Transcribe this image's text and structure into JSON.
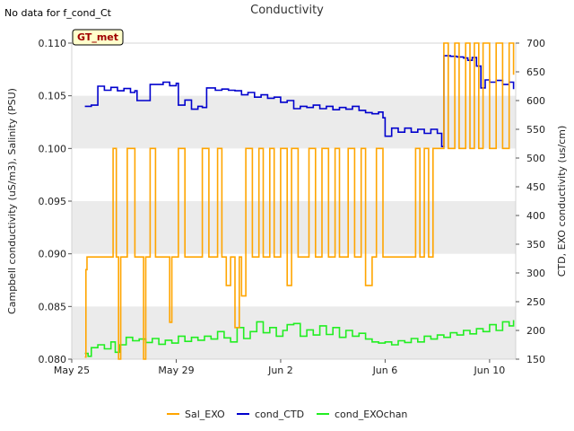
{
  "note": "No data for f_cond_Ct",
  "badge": "GT_met",
  "colors": {
    "Sal_EXO": "#FFA500",
    "cond_CTD": "#0000CD",
    "cond_EXOchan": "#22EE22",
    "band": "#EBEBEB"
  },
  "chart_data": {
    "type": "line",
    "title": "Conductivity",
    "ylabel": "Campbell conductivity (uS/m3), Salinity (PSU)",
    "y2label": "CTD, EXO conductivity (us/cm)",
    "xlim": [
      "2023-05-25",
      "2023-06-11"
    ],
    "ylim": [
      0.08,
      0.11
    ],
    "y2lim": [
      150,
      700
    ],
    "x_ticks": [
      {
        "date": "2023-05-25",
        "label": "May 25"
      },
      {
        "date": "2023-05-29",
        "label": "May 29"
      },
      {
        "date": "2023-06-02",
        "label": "Jun 2"
      },
      {
        "date": "2023-06-06",
        "label": "Jun 6"
      },
      {
        "date": "2023-06-10",
        "label": "Jun 10"
      }
    ],
    "y_ticks": [
      "0.080",
      "0.085",
      "0.090",
      "0.095",
      "0.100",
      "0.105",
      "0.110"
    ],
    "y2_ticks": [
      "150",
      "200",
      "250",
      "300",
      "350",
      "400",
      "450",
      "500",
      "550",
      "600",
      "650",
      "700"
    ],
    "legend_position": "bottom",
    "series": [
      {
        "name": "Sal_EXO",
        "axis": "left",
        "points": [
          [
            "2023-05-25T12:00",
            0.0802
          ],
          [
            "2023-05-25T13:00",
            0.0885
          ],
          [
            "2023-05-25T14:00",
            0.0897
          ],
          [
            "2023-05-26T12:00",
            0.0897
          ],
          [
            "2023-05-26T14:00",
            0.1
          ],
          [
            "2023-05-26T17:00",
            0.0897
          ],
          [
            "2023-05-26T19:00",
            0.08
          ],
          [
            "2023-05-26T21:00",
            0.0897
          ],
          [
            "2023-05-27T00:00",
            0.0897
          ],
          [
            "2023-05-27T03:00",
            0.1
          ],
          [
            "2023-05-27T08:00",
            0.1
          ],
          [
            "2023-05-27T10:00",
            0.0897
          ],
          [
            "2023-05-27T16:00",
            0.0897
          ],
          [
            "2023-05-27T18:00",
            0.08
          ],
          [
            "2023-05-27T20:00",
            0.0897
          ],
          [
            "2023-05-28T00:00",
            0.1
          ],
          [
            "2023-05-28T05:00",
            0.0897
          ],
          [
            "2023-05-28T16:00",
            0.0897
          ],
          [
            "2023-05-28T18:00",
            0.0835
          ],
          [
            "2023-05-28T20:00",
            0.0897
          ],
          [
            "2023-05-29T02:00",
            0.1
          ],
          [
            "2023-05-29T08:00",
            0.0897
          ],
          [
            "2023-05-29T10:00",
            0.0897
          ],
          [
            "2023-05-29T20:00",
            0.0897
          ],
          [
            "2023-05-30T00:00",
            0.1
          ],
          [
            "2023-05-30T06:00",
            0.0897
          ],
          [
            "2023-05-30T10:00",
            0.0897
          ],
          [
            "2023-05-30T14:00",
            0.1
          ],
          [
            "2023-05-30T18:00",
            0.0897
          ],
          [
            "2023-05-30T22:00",
            0.087
          ],
          [
            "2023-05-31T02:00",
            0.0897
          ],
          [
            "2023-05-31T06:00",
            0.083
          ],
          [
            "2023-05-31T10:00",
            0.0897
          ],
          [
            "2023-05-31T12:00",
            0.086
          ],
          [
            "2023-05-31T16:00",
            0.1
          ],
          [
            "2023-05-31T22:00",
            0.0897
          ],
          [
            "2023-06-01T04:00",
            0.1
          ],
          [
            "2023-06-01T08:00",
            0.0897
          ],
          [
            "2023-06-01T14:00",
            0.1
          ],
          [
            "2023-06-01T18:00",
            0.0897
          ],
          [
            "2023-06-02T00:00",
            0.1
          ],
          [
            "2023-06-02T06:00",
            0.087
          ],
          [
            "2023-06-02T10:00",
            0.1
          ],
          [
            "2023-06-02T16:00",
            0.0897
          ],
          [
            "2023-06-02T20:00",
            0.0897
          ],
          [
            "2023-06-03T02:00",
            0.1
          ],
          [
            "2023-06-03T08:00",
            0.0897
          ],
          [
            "2023-06-03T14:00",
            0.1
          ],
          [
            "2023-06-03T20:00",
            0.0897
          ],
          [
            "2023-06-04T02:00",
            0.1
          ],
          [
            "2023-06-04T06:00",
            0.0897
          ],
          [
            "2023-06-04T10:00",
            0.0897
          ],
          [
            "2023-06-04T14:00",
            0.1
          ],
          [
            "2023-06-04T20:00",
            0.0897
          ],
          [
            "2023-06-05T02:00",
            0.1
          ],
          [
            "2023-06-05T06:00",
            0.087
          ],
          [
            "2023-06-05T12:00",
            0.0897
          ],
          [
            "2023-06-05T16:00",
            0.1
          ],
          [
            "2023-06-05T22:00",
            0.0897
          ],
          [
            "2023-06-06T04:00",
            0.0897
          ],
          [
            "2023-06-06T14:00",
            0.0897
          ],
          [
            "2023-06-06T20:00",
            0.0897
          ],
          [
            "2023-06-07T00:00",
            0.0897
          ],
          [
            "2023-06-07T04:00",
            0.1
          ],
          [
            "2023-06-07T08:00",
            0.0897
          ],
          [
            "2023-06-07T12:00",
            0.1
          ],
          [
            "2023-06-07T16:00",
            0.0897
          ],
          [
            "2023-06-07T20:00",
            0.1
          ],
          [
            "2023-06-08T00:00",
            0.1
          ],
          [
            "2023-06-08T06:00",
            0.11
          ],
          [
            "2023-06-08T10:00",
            0.1
          ],
          [
            "2023-06-08T16:00",
            0.11
          ],
          [
            "2023-06-08T20:00",
            0.1
          ],
          [
            "2023-06-09T02:00",
            0.11
          ],
          [
            "2023-06-09T06:00",
            0.1
          ],
          [
            "2023-06-09T10:00",
            0.11
          ],
          [
            "2023-06-09T14:00",
            0.1
          ],
          [
            "2023-06-09T18:00",
            0.11
          ],
          [
            "2023-06-10T00:00",
            0.1
          ],
          [
            "2023-06-10T06:00",
            0.11
          ],
          [
            "2023-06-10T12:00",
            0.1
          ],
          [
            "2023-06-10T18:00",
            0.11
          ],
          [
            "2023-06-10T22:00",
            0.107
          ]
        ]
      },
      {
        "name": "cond_CTD",
        "axis": "right",
        "points": [
          [
            "2023-05-25T12:00",
            590
          ],
          [
            "2023-05-25T18:00",
            592
          ],
          [
            "2023-05-26T00:00",
            625
          ],
          [
            "2023-05-26T06:00",
            618
          ],
          [
            "2023-05-26T12:00",
            623
          ],
          [
            "2023-05-26T18:00",
            617
          ],
          [
            "2023-05-27T00:00",
            621
          ],
          [
            "2023-05-27T06:00",
            614
          ],
          [
            "2023-05-27T10:00",
            617
          ],
          [
            "2023-05-27T12:00",
            600
          ],
          [
            "2023-05-27T18:00",
            600
          ],
          [
            "2023-05-28T00:00",
            628
          ],
          [
            "2023-05-28T06:00",
            628
          ],
          [
            "2023-05-28T12:00",
            632
          ],
          [
            "2023-05-28T18:00",
            626
          ],
          [
            "2023-05-29T00:00",
            630
          ],
          [
            "2023-05-29T02:00",
            592
          ],
          [
            "2023-05-29T08:00",
            601
          ],
          [
            "2023-05-29T14:00",
            585
          ],
          [
            "2023-05-29T20:00",
            590
          ],
          [
            "2023-05-30T00:00",
            588
          ],
          [
            "2023-05-30T04:00",
            622
          ],
          [
            "2023-05-30T12:00",
            618
          ],
          [
            "2023-05-30T18:00",
            620
          ],
          [
            "2023-05-31T00:00",
            618
          ],
          [
            "2023-05-31T06:00",
            617
          ],
          [
            "2023-05-31T12:00",
            610
          ],
          [
            "2023-05-31T18:00",
            614
          ],
          [
            "2023-06-01T00:00",
            606
          ],
          [
            "2023-06-01T06:00",
            610
          ],
          [
            "2023-06-01T12:00",
            604
          ],
          [
            "2023-06-01T18:00",
            606
          ],
          [
            "2023-06-02T00:00",
            597
          ],
          [
            "2023-06-02T06:00",
            600
          ],
          [
            "2023-06-02T12:00",
            586
          ],
          [
            "2023-06-02T18:00",
            590
          ],
          [
            "2023-06-03T00:00",
            588
          ],
          [
            "2023-06-03T06:00",
            592
          ],
          [
            "2023-06-03T12:00",
            586
          ],
          [
            "2023-06-03T18:00",
            590
          ],
          [
            "2023-06-04T00:00",
            584
          ],
          [
            "2023-06-04T06:00",
            588
          ],
          [
            "2023-06-04T12:00",
            585
          ],
          [
            "2023-06-04T18:00",
            590
          ],
          [
            "2023-06-05T00:00",
            583
          ],
          [
            "2023-06-05T06:00",
            579
          ],
          [
            "2023-06-05T12:00",
            577
          ],
          [
            "2023-06-05T18:00",
            580
          ],
          [
            "2023-06-05T22:00",
            570
          ],
          [
            "2023-06-06T00:00",
            538
          ],
          [
            "2023-06-06T06:00",
            552
          ],
          [
            "2023-06-06T12:00",
            545
          ],
          [
            "2023-06-06T18:00",
            552
          ],
          [
            "2023-06-07T00:00",
            545
          ],
          [
            "2023-06-07T06:00",
            550
          ],
          [
            "2023-06-07T12:00",
            543
          ],
          [
            "2023-06-07T18:00",
            550
          ],
          [
            "2023-06-08T00:00",
            543
          ],
          [
            "2023-06-08T04:00",
            520
          ],
          [
            "2023-06-08T06:00",
            678
          ],
          [
            "2023-06-08T12:00",
            677
          ],
          [
            "2023-06-08T18:00",
            676
          ],
          [
            "2023-06-09T00:00",
            674
          ],
          [
            "2023-06-09T04:00",
            670
          ],
          [
            "2023-06-09T08:00",
            675
          ],
          [
            "2023-06-09T12:00",
            660
          ],
          [
            "2023-06-09T16:00",
            622
          ],
          [
            "2023-06-09T20:00",
            636
          ],
          [
            "2023-06-10T00:00",
            632
          ],
          [
            "2023-06-10T06:00",
            635
          ],
          [
            "2023-06-10T12:00",
            628
          ],
          [
            "2023-06-10T18:00",
            632
          ],
          [
            "2023-06-10T22:00",
            620
          ]
        ]
      },
      {
        "name": "cond_EXOchan",
        "axis": "right",
        "points": [
          [
            "2023-05-25T12:00",
            160
          ],
          [
            "2023-05-25T15:00",
            155
          ],
          [
            "2023-05-25T18:00",
            170
          ],
          [
            "2023-05-26T00:00",
            175
          ],
          [
            "2023-05-26T06:00",
            168
          ],
          [
            "2023-05-26T12:00",
            180
          ],
          [
            "2023-05-26T16:00",
            162
          ],
          [
            "2023-05-26T20:00",
            175
          ],
          [
            "2023-05-27T02:00",
            188
          ],
          [
            "2023-05-27T08:00",
            182
          ],
          [
            "2023-05-27T14:00",
            185
          ],
          [
            "2023-05-27T20:00",
            179
          ],
          [
            "2023-05-28T02:00",
            186
          ],
          [
            "2023-05-28T08:00",
            176
          ],
          [
            "2023-05-28T14:00",
            183
          ],
          [
            "2023-05-28T20:00",
            178
          ],
          [
            "2023-05-29T02:00",
            190
          ],
          [
            "2023-05-29T08:00",
            181
          ],
          [
            "2023-05-29T14:00",
            188
          ],
          [
            "2023-05-29T20:00",
            183
          ],
          [
            "2023-05-30T02:00",
            190
          ],
          [
            "2023-05-30T08:00",
            185
          ],
          [
            "2023-05-30T14:00",
            198
          ],
          [
            "2023-05-30T20:00",
            187
          ],
          [
            "2023-05-31T02:00",
            180
          ],
          [
            "2023-05-31T08:00",
            205
          ],
          [
            "2023-05-31T14:00",
            186
          ],
          [
            "2023-05-31T20:00",
            198
          ],
          [
            "2023-06-01T02:00",
            215
          ],
          [
            "2023-06-01T08:00",
            196
          ],
          [
            "2023-06-01T14:00",
            205
          ],
          [
            "2023-06-01T20:00",
            190
          ],
          [
            "2023-06-02T02:00",
            200
          ],
          [
            "2023-06-02T06:00",
            210
          ],
          [
            "2023-06-02T12:00",
            212
          ],
          [
            "2023-06-02T18:00",
            190
          ],
          [
            "2023-06-03T00:00",
            201
          ],
          [
            "2023-06-03T06:00",
            192
          ],
          [
            "2023-06-03T12:00",
            208
          ],
          [
            "2023-06-03T18:00",
            193
          ],
          [
            "2023-06-04T00:00",
            205
          ],
          [
            "2023-06-04T06:00",
            188
          ],
          [
            "2023-06-04T12:00",
            200
          ],
          [
            "2023-06-04T18:00",
            190
          ],
          [
            "2023-06-05T00:00",
            195
          ],
          [
            "2023-06-05T06:00",
            185
          ],
          [
            "2023-06-05T12:00",
            180
          ],
          [
            "2023-06-05T18:00",
            178
          ],
          [
            "2023-06-06T00:00",
            180
          ],
          [
            "2023-06-06T06:00",
            175
          ],
          [
            "2023-06-06T12:00",
            182
          ],
          [
            "2023-06-06T18:00",
            179
          ],
          [
            "2023-06-07T00:00",
            186
          ],
          [
            "2023-06-07T06:00",
            180
          ],
          [
            "2023-06-07T12:00",
            190
          ],
          [
            "2023-06-07T18:00",
            185
          ],
          [
            "2023-06-08T00:00",
            192
          ],
          [
            "2023-06-08T06:00",
            188
          ],
          [
            "2023-06-08T12:00",
            196
          ],
          [
            "2023-06-08T18:00",
            192
          ],
          [
            "2023-06-09T00:00",
            200
          ],
          [
            "2023-06-09T06:00",
            194
          ],
          [
            "2023-06-09T12:00",
            203
          ],
          [
            "2023-06-09T18:00",
            198
          ],
          [
            "2023-06-10T00:00",
            210
          ],
          [
            "2023-06-10T06:00",
            200
          ],
          [
            "2023-06-10T12:00",
            215
          ],
          [
            "2023-06-10T18:00",
            208
          ],
          [
            "2023-06-10T22:00",
            218
          ]
        ]
      }
    ]
  }
}
